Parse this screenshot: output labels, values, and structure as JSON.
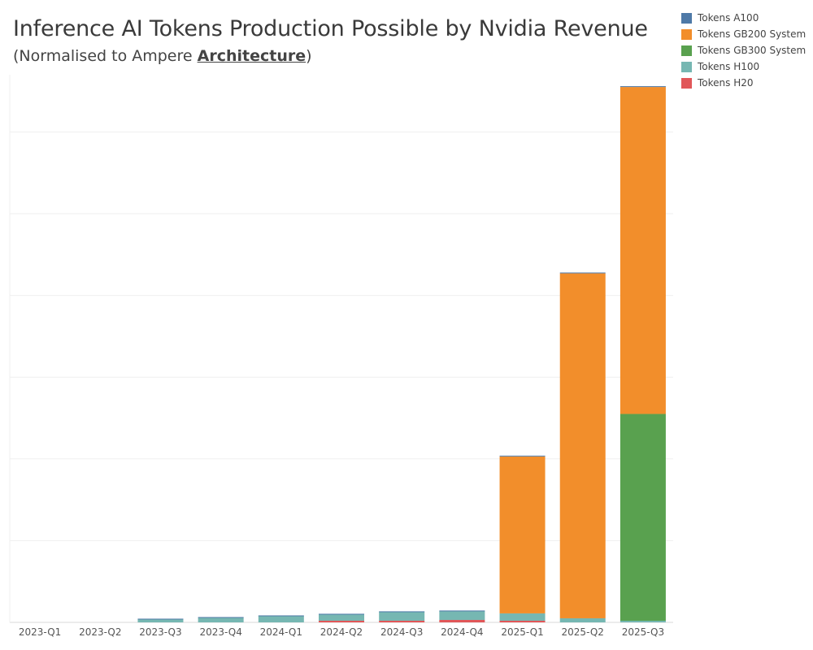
{
  "title": "Inference AI Tokens Production Possible by Nvidia Revenue",
  "subtitle": {
    "prefix": "(Normalised to Ampere ",
    "emphasis": "Architecture",
    "suffix": ")"
  },
  "colors": {
    "Tokens A100": "#4e79a7",
    "Tokens GB200 System": "#f28e2b",
    "Tokens GB300 System": "#59a14f",
    "Tokens H100": "#76b7b2",
    "Tokens H20": "#e15759"
  },
  "chart_data": {
    "type": "bar",
    "stacked": true,
    "title": "Inference AI Tokens Production Possible by Nvidia Revenue",
    "subtitle": "(Normalised to Ampere Architecture)",
    "xlabel": "",
    "ylabel": "",
    "y_tick_labels_shown": false,
    "grid": true,
    "legend_position": "top-right",
    "ylim": [
      0,
      6.7
    ],
    "categories": [
      "2023-Q1",
      "2023-Q2",
      "2023-Q3",
      "2023-Q4",
      "2024-Q1",
      "2024-Q2",
      "2024-Q3",
      "2024-Q4",
      "2025-Q1",
      "2025-Q2",
      "2025-Q3"
    ],
    "series": [
      {
        "name": "Tokens H20",
        "values": [
          0,
          0,
          0,
          0,
          0,
          0.02,
          0.02,
          0.03,
          0.02,
          0,
          0
        ]
      },
      {
        "name": "Tokens H100",
        "values": [
          0,
          0,
          0.04,
          0.06,
          0.08,
          0.08,
          0.11,
          0.11,
          0.09,
          0.05,
          0.02
        ]
      },
      {
        "name": "Tokens GB300 System",
        "values": [
          0,
          0,
          0,
          0,
          0,
          0,
          0,
          0,
          0,
          0,
          2.53
        ]
      },
      {
        "name": "Tokens GB200 System",
        "values": [
          0,
          0,
          0,
          0,
          0,
          0,
          0,
          0,
          1.92,
          4.22,
          4.0
        ]
      },
      {
        "name": "Tokens A100",
        "values": [
          0,
          0,
          0.005,
          0.005,
          0.005,
          0.005,
          0.005,
          0.005,
          0.01,
          0.01,
          0.01
        ]
      }
    ],
    "legend": [
      "Tokens A100",
      "Tokens GB200 System",
      "Tokens GB300 System",
      "Tokens H100",
      "Tokens H20"
    ]
  }
}
